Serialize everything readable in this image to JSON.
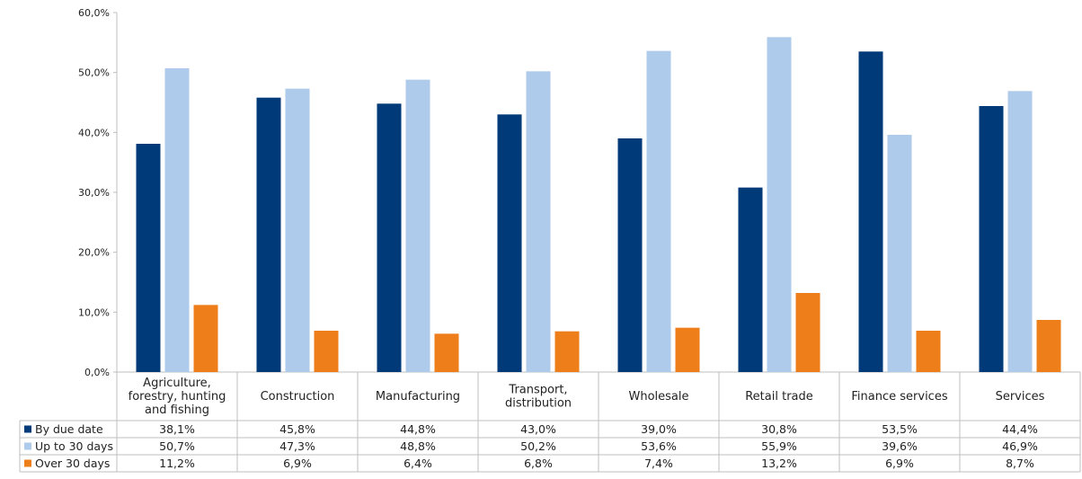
{
  "chart_data": {
    "type": "bar",
    "categories": [
      [
        "Agriculture,",
        "forestry, hunting",
        "and fishing"
      ],
      [
        "Construction"
      ],
      [
        "Manufacturing"
      ],
      [
        "Transport,",
        "distribution"
      ],
      [
        "Wholesale"
      ],
      [
        "Retail trade"
      ],
      [
        "Finance services"
      ],
      [
        "Services"
      ]
    ],
    "series": [
      {
        "name": "By due date",
        "color": "#003a78",
        "values": [
          38.1,
          45.8,
          44.8,
          43.0,
          39.0,
          30.8,
          53.5,
          44.4
        ],
        "labels": [
          "38,1%",
          "45,8%",
          "44,8%",
          "43,0%",
          "39,0%",
          "30,8%",
          "53,5%",
          "44,4%"
        ]
      },
      {
        "name": "Up to 30 days",
        "color": "#aecbeb",
        "values": [
          50.7,
          47.3,
          48.8,
          50.2,
          53.6,
          55.9,
          39.6,
          46.9
        ],
        "labels": [
          "50,7%",
          "47,3%",
          "48,8%",
          "50,2%",
          "53,6%",
          "55,9%",
          "39,6%",
          "46,9%"
        ]
      },
      {
        "name": "Over 30 days",
        "color": "#ee7e1a",
        "values": [
          11.2,
          6.9,
          6.4,
          6.8,
          7.4,
          13.2,
          6.9,
          8.7
        ],
        "labels": [
          "11,2%",
          "6,9%",
          "6,4%",
          "6,8%",
          "7,4%",
          "13,2%",
          "6,9%",
          "8,7%"
        ]
      }
    ],
    "yticks": [
      0,
      10,
      20,
      30,
      40,
      50,
      60
    ],
    "ytick_labels": [
      "0,0%",
      "10,0%",
      "20,0%",
      "30,0%",
      "40,0%",
      "50,0%",
      "60,0%"
    ],
    "ylim": [
      0,
      60
    ],
    "grid": false,
    "legend": "data-table"
  }
}
